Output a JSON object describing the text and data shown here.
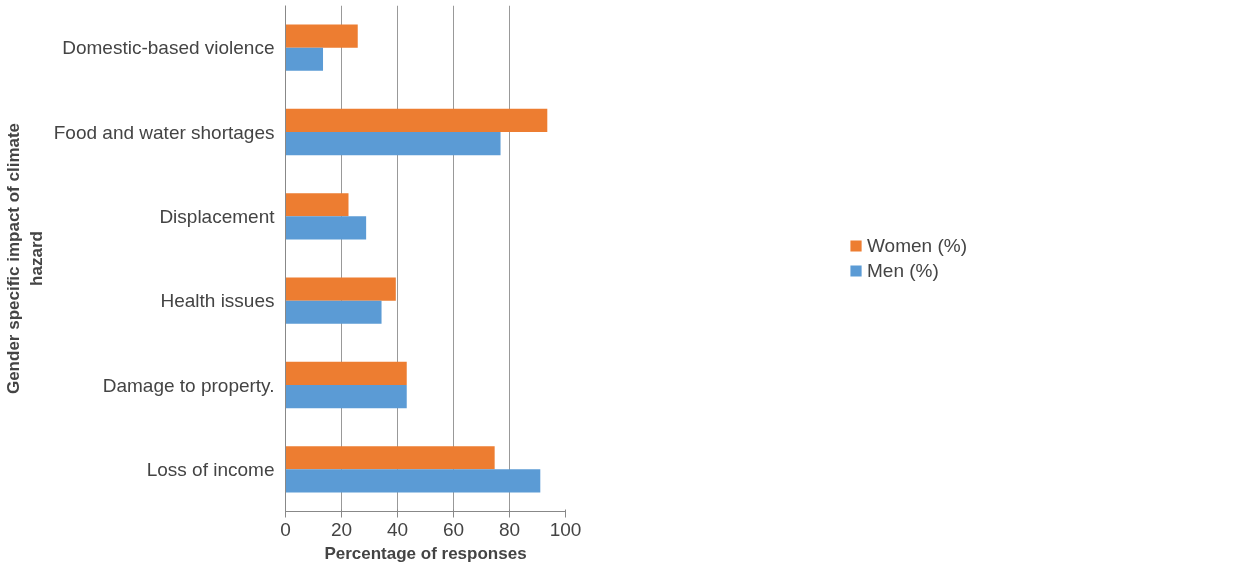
{
  "chart_data": {
    "type": "bar",
    "orientation": "horizontal",
    "xlabel": "Percentage of responses",
    "ylabel": "Gender specific impact of climate hazard",
    "categories": [
      "Domestic-based violence",
      "Food and water shortages",
      "Displacement",
      "Health issues",
      "Damage to property.",
      "Loss of income"
    ],
    "series": [
      {
        "name": "Women (%)",
        "color": "#ed7d31",
        "values": [
          25.8,
          93.5,
          22.5,
          39.4,
          43.3,
          74.7
        ]
      },
      {
        "name": "Men (%)",
        "color": "#5b9bd5",
        "values": [
          13.4,
          76.8,
          28.8,
          34.3,
          43.3,
          91.0
        ]
      }
    ],
    "xlim": [
      0,
      100
    ],
    "xticks": [
      0,
      20,
      40,
      60,
      80,
      100
    ],
    "grid": "x",
    "legend": "right"
  }
}
